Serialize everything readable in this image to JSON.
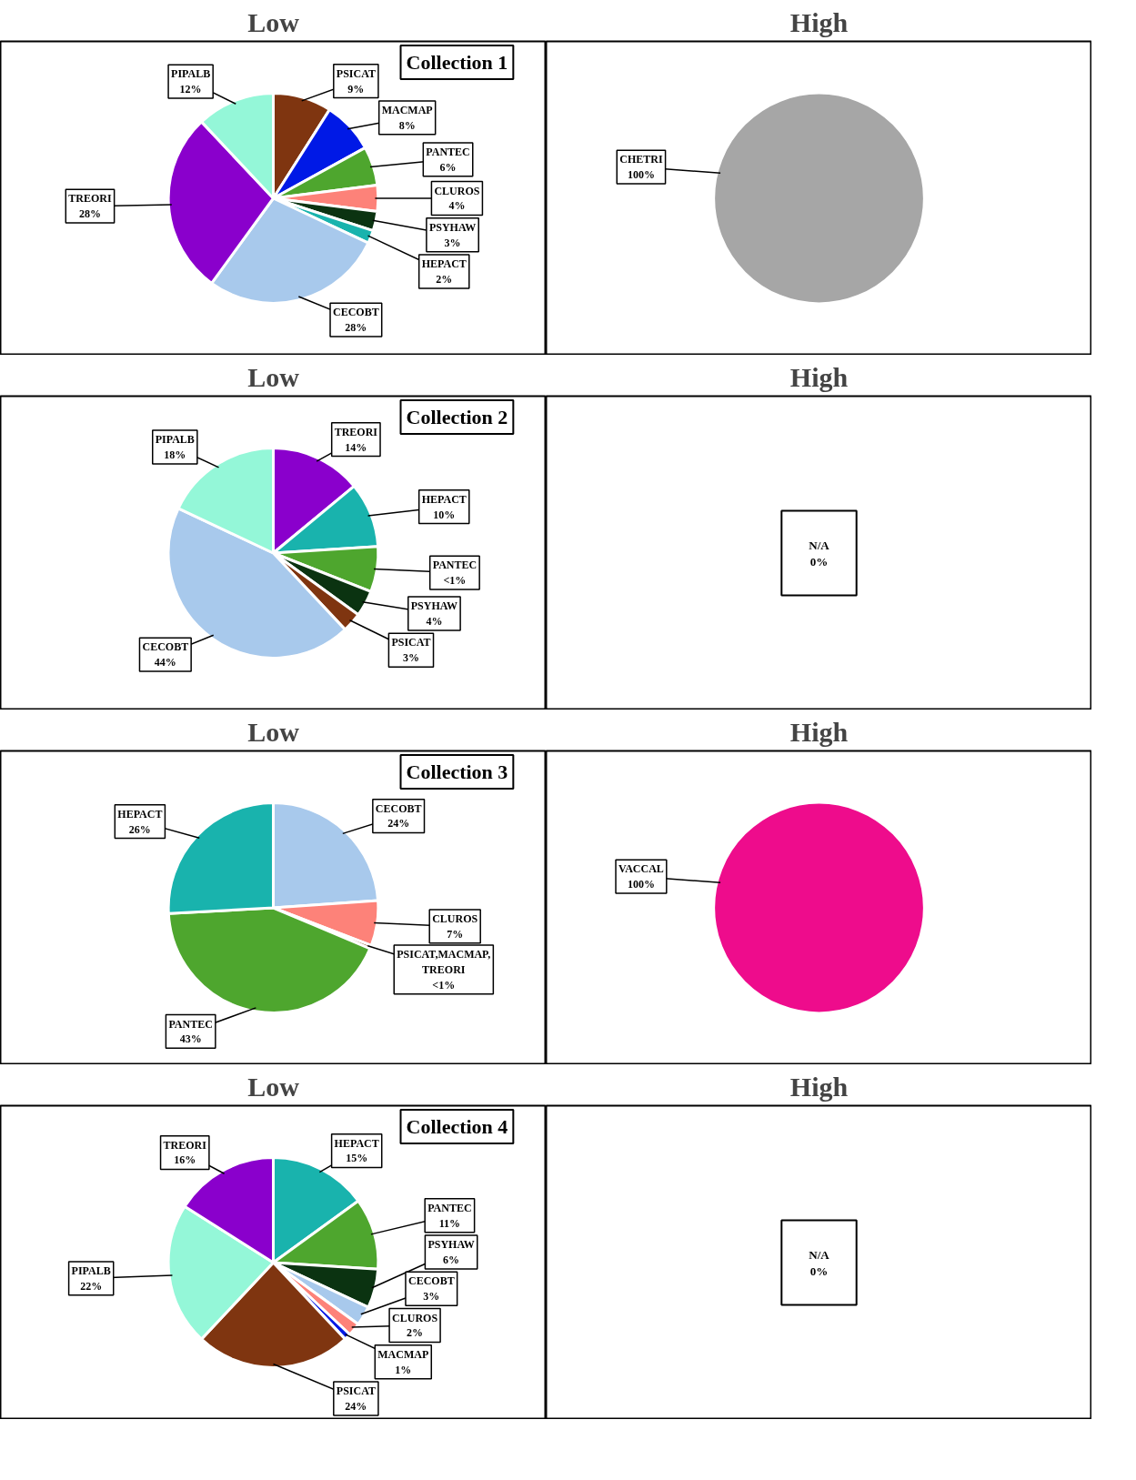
{
  "chart_data": [
    {
      "type": "pie",
      "title": "Low",
      "subtitle": "Collection 1",
      "categories": [
        "PSICAT",
        "MACMAP",
        "PANTEC",
        "CLUROS",
        "PSYHAW",
        "HEPACT",
        "CECOBT",
        "TREORI",
        "PIPALB"
      ],
      "values": [
        9,
        8,
        6,
        4,
        3,
        2,
        28,
        28,
        12
      ],
      "value_labels": [
        "9%",
        "8%",
        "6%",
        "4%",
        "3%",
        "2%",
        "28%",
        "28%",
        "12%"
      ],
      "colors": [
        "#7f3510",
        "#0019e6",
        "#4ea62e",
        "#fd8279",
        "#0b3311",
        "#19b3ad",
        "#a8c9ec",
        "#8a00cc",
        "#94f7d8"
      ]
    },
    {
      "type": "pie",
      "title": "High",
      "categories": [
        "CHETRI"
      ],
      "values": [
        100
      ],
      "value_labels": [
        "100%"
      ],
      "colors": [
        "#a6a6a6"
      ]
    },
    {
      "type": "pie",
      "title": "Low",
      "subtitle": "Collection 2",
      "categories": [
        "TREORI",
        "HEPACT",
        "PANTEC",
        "PSYHAW",
        "PSICAT",
        "CECOBT",
        "PIPALB"
      ],
      "values": [
        14,
        10,
        7,
        4,
        3,
        44,
        18
      ],
      "value_labels": [
        "14%",
        "10%",
        "<1%",
        "4%",
        "3%",
        "44%",
        "18%"
      ],
      "colors": [
        "#8a00cc",
        "#19b3ad",
        "#4ea62e",
        "#0b3311",
        "#7f3510",
        "#a8c9ec",
        "#94f7d8"
      ]
    },
    {
      "type": "other",
      "title": "High",
      "annotations": [
        "N/A",
        "0%"
      ]
    },
    {
      "type": "pie",
      "title": "Low",
      "subtitle": "Collection 3",
      "categories": [
        "CECOBT",
        "CLUROS",
        "PSICAT,MACMAP,\nTREORI",
        "PANTEC",
        "HEPACT"
      ],
      "values": [
        24,
        7,
        0.5,
        43,
        26
      ],
      "value_labels": [
        "24%",
        "7%",
        "<1%",
        "43%",
        "26%"
      ],
      "colors": [
        "#a8c9ec",
        "#fd8279",
        "#7f3510",
        "#4ea62e",
        "#19b3ad"
      ]
    },
    {
      "type": "pie",
      "title": "High",
      "categories": [
        "VACCAL"
      ],
      "values": [
        100
      ],
      "value_labels": [
        "100%"
      ],
      "colors": [
        "#ee0c8c"
      ]
    },
    {
      "type": "pie",
      "title": "Low",
      "subtitle": "Collection 4",
      "categories": [
        "HEPACT",
        "PANTEC",
        "PSYHAW",
        "CECOBT",
        "CLUROS",
        "MACMAP",
        "PSICAT",
        "PIPALB",
        "TREORI"
      ],
      "values": [
        15,
        11,
        6,
        3,
        2,
        1,
        24,
        22,
        16
      ],
      "value_labels": [
        "15%",
        "11%",
        "6%",
        "3%",
        "2%",
        "1%",
        "24%",
        "22%",
        "16%"
      ],
      "colors": [
        "#19b3ad",
        "#4ea62e",
        "#0b3311",
        "#a8c9ec",
        "#fd8279",
        "#0019e6",
        "#7f3510",
        "#94f7d8",
        "#8a00cc"
      ]
    },
    {
      "type": "other",
      "title": "High",
      "annotations": [
        "N/A",
        "0%"
      ]
    }
  ]
}
